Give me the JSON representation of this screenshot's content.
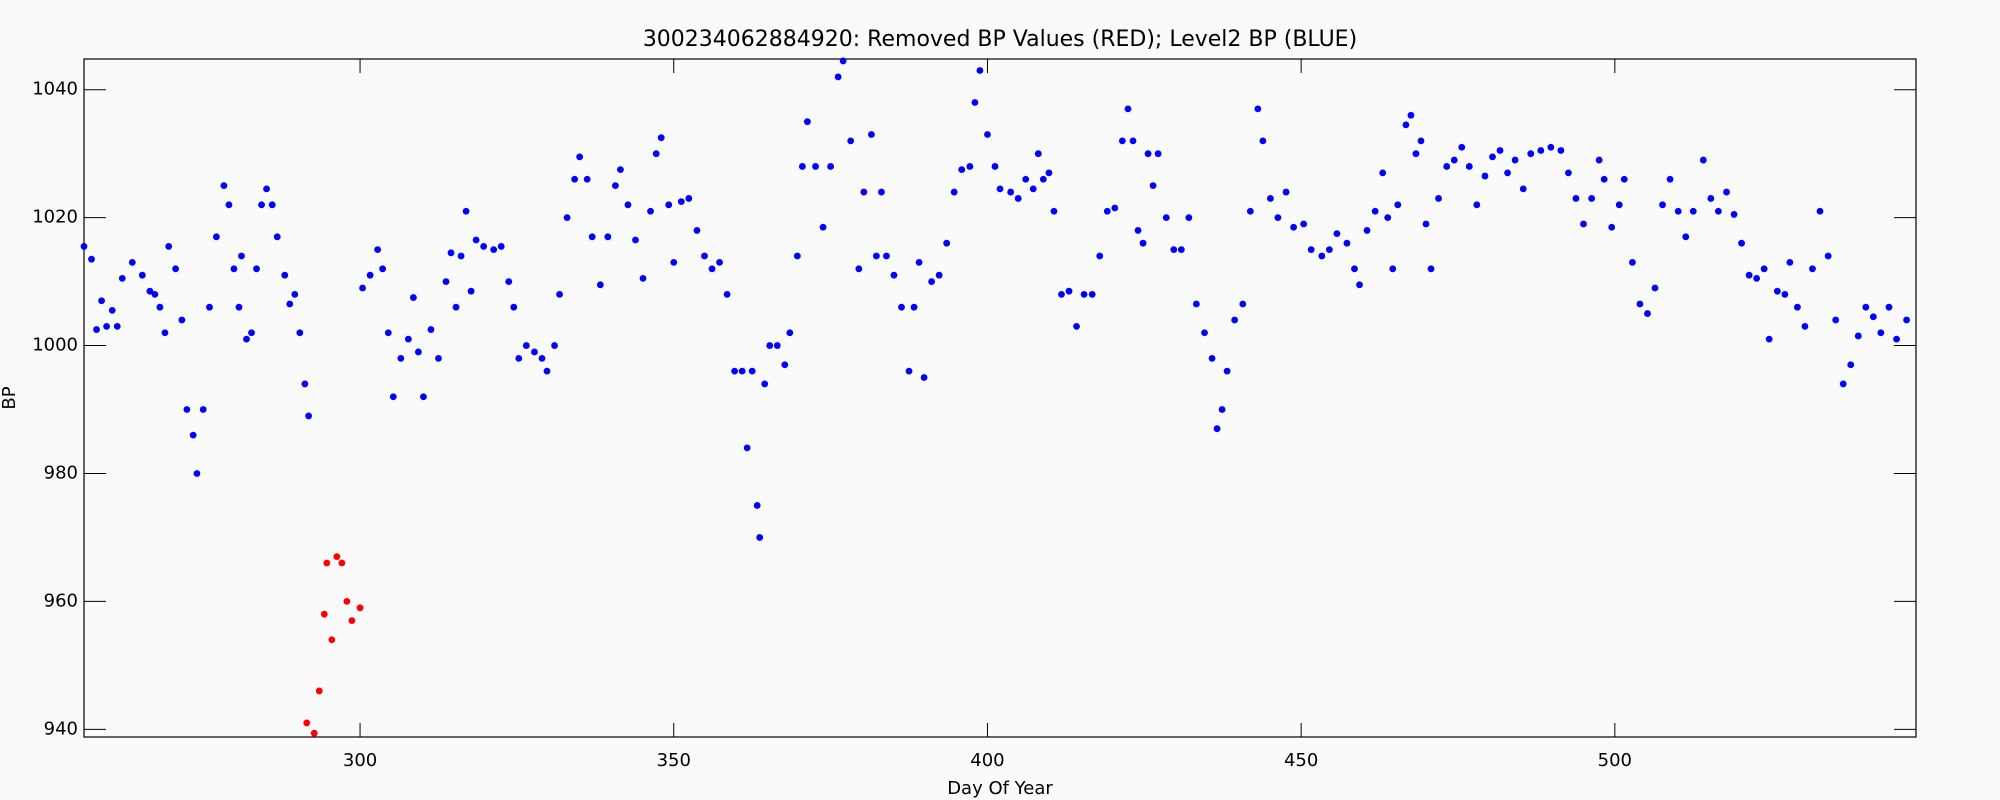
{
  "chart_data": {
    "type": "scatter",
    "title": "300234062884920: Removed BP Values (RED); Level2 BP (BLUE)",
    "x_label": "Day Of Year",
    "y_label": "BP",
    "xlim": [
      256,
      548
    ],
    "ylim": [
      938.8,
      1044.8
    ],
    "xticks": [
      300,
      350,
      400,
      450,
      500
    ],
    "yticks": [
      940,
      960,
      980,
      1000,
      1020,
      1040
    ],
    "series": [
      {
        "name": "Level2 BP",
        "color": "#0000ff",
        "x": [
          256,
          257.2,
          258,
          258.8,
          259.6,
          260.5,
          261.3,
          262.1,
          263.7,
          265.3,
          266.5,
          267.3,
          268.1,
          268.9,
          269.5,
          270.6,
          271.6,
          272.4,
          273.4,
          274,
          275,
          276,
          277.1,
          278.3,
          279.1,
          279.9,
          280.7,
          281.1,
          281.9,
          282.7,
          283.5,
          284.3,
          285.1,
          286,
          286.8,
          288,
          288.8,
          289.6,
          290.4,
          291.2,
          291.8,
          300.4,
          301.6,
          302.8,
          303.6,
          304.5,
          305.3,
          306.5,
          307.7,
          308.5,
          309.3,
          310.1,
          311.3,
          312.5,
          313.7,
          314.5,
          315.3,
          316.1,
          316.9,
          317.7,
          318.5,
          319.7,
          321.3,
          322.5,
          323.7,
          324.5,
          325.3,
          326.5,
          327.8,
          329,
          329.8,
          331,
          331.8,
          333,
          334.2,
          335,
          336.2,
          337,
          338.3,
          339.5,
          340.7,
          341.5,
          342.7,
          343.9,
          345.1,
          346.3,
          347.2,
          348,
          349.2,
          350,
          351.2,
          352.4,
          353.7,
          354.9,
          356.1,
          357.3,
          358.5,
          359.7,
          360.9,
          361.7,
          362.5,
          363.3,
          363.7,
          364.5,
          365.3,
          366.5,
          367.7,
          368.5,
          369.7,
          370.5,
          371.3,
          372.6,
          373.8,
          375,
          376.2,
          377,
          378.2,
          379.5,
          380.3,
          381.5,
          382.3,
          383.1,
          383.9,
          385.1,
          386.3,
          387.5,
          388.3,
          389.1,
          389.9,
          391.1,
          392.3,
          393.5,
          394.7,
          395.9,
          397.2,
          398,
          398.8,
          400,
          401.2,
          402,
          403.7,
          404.9,
          406.1,
          407.3,
          408.1,
          408.9,
          409.8,
          410.6,
          411.8,
          413,
          414.2,
          415.4,
          416.7,
          417.9,
          419.1,
          420.3,
          421.5,
          422.4,
          423.2,
          424,
          424.8,
          425.6,
          426.4,
          427.2,
          428.5,
          429.7,
          430.9,
          432.1,
          433.3,
          434.6,
          435.8,
          436.6,
          437.4,
          438.2,
          439.4,
          440.7,
          441.9,
          443.1,
          443.9,
          445.1,
          446.3,
          447.6,
          448.8,
          450.4,
          451.6,
          453.3,
          454.5,
          455.7,
          457.3,
          458.5,
          459.3,
          460.5,
          461.8,
          463,
          463.8,
          464.6,
          465.4,
          466.7,
          467.5,
          468.3,
          469.1,
          469.9,
          470.7,
          471.9,
          473.2,
          474.4,
          475.6,
          476.8,
          478,
          479.3,
          480.5,
          481.7,
          482.9,
          484.1,
          485.4,
          486.6,
          488.2,
          489.8,
          491.4,
          492.6,
          493.8,
          495,
          496.3,
          497.5,
          498.3,
          499.5,
          500.7,
          501.5,
          502.8,
          504,
          505.2,
          506.4,
          507.6,
          508.8,
          510.1,
          511.3,
          512.5,
          514.1,
          515.3,
          516.5,
          517.8,
          519,
          520.2,
          521.4,
          522.6,
          523.8,
          524.6,
          525.9,
          527.1,
          527.9,
          529.1,
          530.3,
          531.5,
          532.7,
          534,
          535.2,
          536.4,
          537.6,
          538.8,
          540,
          541.2,
          542.4,
          543.7,
          544.9,
          546.5
        ],
        "values": [
          1015.5,
          1013.5,
          1002.5,
          1007,
          1003,
          1005.5,
          1003,
          1010.5,
          1013,
          1011,
          1008.5,
          1008,
          1006,
          1002,
          1015.5,
          1012,
          1004,
          990,
          986,
          980,
          990,
          1006,
          1017,
          1025,
          1022,
          1012,
          1006,
          1014,
          1001,
          1002,
          1012,
          1022,
          1024.5,
          1022,
          1017,
          1011,
          1006.5,
          1008,
          1002,
          994,
          989,
          1009,
          1011,
          1015,
          1012,
          1002,
          992,
          998,
          1001,
          1007.5,
          999,
          992,
          1002.5,
          998,
          1010,
          1014.5,
          1006,
          1014,
          1021,
          1008.5,
          1016.5,
          1015.5,
          1015,
          1015.5,
          1010,
          1006,
          998,
          1000,
          999,
          998,
          996,
          1000,
          1008,
          1020,
          1026,
          1029.5,
          1026,
          1017,
          1009.5,
          1017,
          1025,
          1027.5,
          1022,
          1016.5,
          1010.5,
          1021,
          1030,
          1032.5,
          1022,
          1013,
          1022.5,
          1023,
          1018,
          1014,
          1012,
          1013,
          1008,
          996,
          996,
          984,
          996,
          975,
          970,
          994,
          1000,
          1000,
          997,
          1002,
          1014,
          1028,
          1035,
          1028,
          1018.5,
          1028,
          1042,
          1044.5,
          1032,
          1012,
          1024,
          1033,
          1014,
          1024,
          1014,
          1011,
          1006,
          996,
          1006,
          1013,
          995,
          1010,
          1011,
          1016,
          1024,
          1027.5,
          1028,
          1038,
          1043,
          1033,
          1028,
          1024.5,
          1024,
          1023,
          1026,
          1024.5,
          1030,
          1026,
          1027,
          1021,
          1008,
          1008.5,
          1003,
          1008,
          1008,
          1014,
          1021,
          1021.5,
          1032,
          1037,
          1032,
          1018,
          1016,
          1030,
          1025,
          1030,
          1020,
          1015,
          1015,
          1020,
          1006.5,
          1002,
          998,
          987,
          990,
          996,
          1004,
          1006.5,
          1021,
          1037,
          1032,
          1023,
          1020,
          1024,
          1018.5,
          1019,
          1015,
          1014,
          1015,
          1017.5,
          1016,
          1012,
          1009.5,
          1018,
          1021,
          1027,
          1020,
          1012,
          1022,
          1034.5,
          1036,
          1030,
          1032,
          1019,
          1012,
          1023,
          1028,
          1029,
          1031,
          1028,
          1022,
          1026.5,
          1029.5,
          1030.5,
          1027,
          1029,
          1024.5,
          1030,
          1030.5,
          1031,
          1030.5,
          1027,
          1023,
          1019,
          1023,
          1029,
          1026,
          1018.5,
          1022,
          1026,
          1013,
          1006.5,
          1005,
          1009,
          1022,
          1026,
          1021,
          1017,
          1021,
          1029,
          1023,
          1021,
          1024,
          1020.5,
          1016,
          1011,
          1010.5,
          1012,
          1001,
          1008.5,
          1008,
          1013,
          1006,
          1003,
          1012,
          1021,
          1014,
          1004,
          994,
          997,
          1001.5,
          1006,
          1004.5,
          1002,
          1006,
          1001,
          1004
        ]
      },
      {
        "name": "Removed BP",
        "color": "#ff0000",
        "x": [
          291.5,
          292.7,
          293.5,
          294.3,
          294.7,
          295.5,
          296.3,
          297.1,
          297.9,
          298.7,
          300
        ],
        "values": [
          941,
          939.4,
          946,
          958,
          966,
          954,
          967,
          966,
          960,
          957,
          959
        ]
      }
    ]
  }
}
